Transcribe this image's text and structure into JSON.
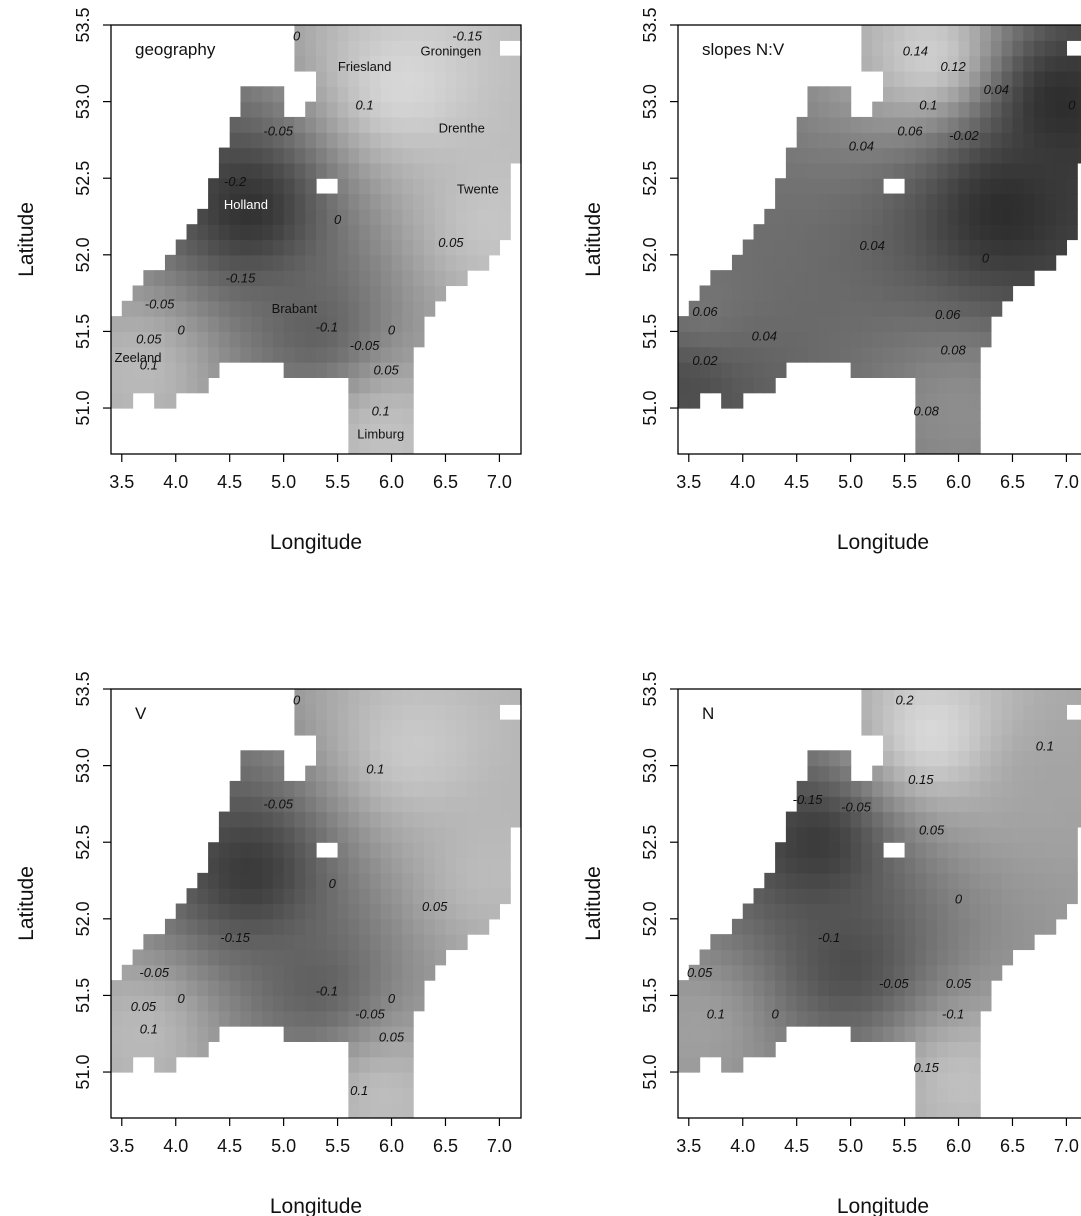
{
  "figure": {
    "background": "#ffffff",
    "foreground": "#000000"
  },
  "chart_data": [
    {
      "type": "heatmap",
      "title": "",
      "panel_label": "geography",
      "xlabel": "Longitude",
      "ylabel": "Latitude",
      "xlim": [
        3.4,
        7.2
      ],
      "ylim": [
        50.7,
        53.5
      ],
      "xticks": [
        "3.5",
        "4.0",
        "4.5",
        "5.0",
        "5.5",
        "6.0",
        "6.5",
        "7.0"
      ],
      "yticks": [
        "51.0",
        "51.5",
        "52.0",
        "52.5",
        "53.0",
        "53.5"
      ],
      "colorscale": [
        "#1a1a1a",
        "#e6e6e6"
      ],
      "value_range": [
        -0.22,
        0.18
      ],
      "hotspots": [
        {
          "lon": 4.7,
          "lat": 52.3,
          "value": -0.2
        },
        {
          "lon": 6.1,
          "lat": 53.1,
          "value": 0.16
        },
        {
          "lon": 6.9,
          "lat": 52.2,
          "value": 0.12
        },
        {
          "lon": 5.9,
          "lat": 50.85,
          "value": 0.12
        },
        {
          "lon": 3.7,
          "lat": 51.25,
          "value": 0.1
        },
        {
          "lon": 5.3,
          "lat": 51.5,
          "value": -0.1
        }
      ],
      "contour_labels": [
        {
          "text": "0",
          "lon": 5.12,
          "lat": 53.4
        },
        {
          "text": "-0.15",
          "lon": 6.7,
          "lat": 53.4
        },
        {
          "text": "0.1",
          "lon": 5.75,
          "lat": 52.95
        },
        {
          "text": "-0.05",
          "lon": 4.95,
          "lat": 52.78
        },
        {
          "text": "-0.2",
          "lon": 4.55,
          "lat": 52.45
        },
        {
          "text": "0",
          "lon": 5.5,
          "lat": 52.2
        },
        {
          "text": "0.05",
          "lon": 6.55,
          "lat": 52.05
        },
        {
          "text": "-0.15",
          "lon": 4.6,
          "lat": 51.82
        },
        {
          "text": "-0.05",
          "lon": 3.85,
          "lat": 51.65
        },
        {
          "text": "0",
          "lon": 4.05,
          "lat": 51.48
        },
        {
          "text": "0.05",
          "lon": 3.75,
          "lat": 51.42
        },
        {
          "text": "0.1",
          "lon": 3.75,
          "lat": 51.25
        },
        {
          "text": "-0.1",
          "lon": 5.4,
          "lat": 51.5
        },
        {
          "text": "-0.05",
          "lon": 5.75,
          "lat": 51.38
        },
        {
          "text": "0",
          "lon": 6.0,
          "lat": 51.48
        },
        {
          "text": "0.05",
          "lon": 5.95,
          "lat": 51.22
        },
        {
          "text": "0.1",
          "lon": 5.9,
          "lat": 50.95
        }
      ],
      "region_labels": [
        {
          "text": "Friesland",
          "lon": 5.75,
          "lat": 53.2
        },
        {
          "text": "Groningen",
          "lon": 6.55,
          "lat": 53.3
        },
        {
          "text": "Drenthe",
          "lon": 6.65,
          "lat": 52.8
        },
        {
          "text": "Holland",
          "lon": 4.65,
          "lat": 52.3
        },
        {
          "text": "Twente",
          "lon": 6.8,
          "lat": 52.4
        },
        {
          "text": "Brabant",
          "lon": 5.1,
          "lat": 51.62
        },
        {
          "text": "Zeeland",
          "lon": 3.65,
          "lat": 51.3
        },
        {
          "text": "Limburg",
          "lon": 5.9,
          "lat": 50.8
        }
      ]
    },
    {
      "type": "heatmap",
      "title": "",
      "panel_label": "slopes N:V",
      "xlabel": "Longitude",
      "ylabel": "Latitude",
      "xlim": [
        3.4,
        7.2
      ],
      "ylim": [
        50.7,
        53.5
      ],
      "xticks": [
        "3.5",
        "4.0",
        "4.5",
        "5.0",
        "5.5",
        "6.0",
        "6.5",
        "7.0"
      ],
      "yticks": [
        "51.0",
        "51.5",
        "52.0",
        "52.5",
        "53.0",
        "53.5"
      ],
      "colorscale": [
        "#1a1a1a",
        "#e6e6e6"
      ],
      "value_range": [
        -0.03,
        0.16
      ],
      "hotspots": [
        {
          "lon": 5.75,
          "lat": 53.3,
          "value": 0.15
        },
        {
          "lon": 6.4,
          "lat": 52.3,
          "value": -0.02
        },
        {
          "lon": 6.9,
          "lat": 53.0,
          "value": -0.02
        },
        {
          "lon": 3.5,
          "lat": 51.2,
          "value": 0.01
        },
        {
          "lon": 6.0,
          "lat": 51.0,
          "value": 0.08
        },
        {
          "lon": 3.6,
          "lat": 51.6,
          "value": 0.06
        }
      ],
      "contour_labels": [
        {
          "text": "0.14",
          "lon": 5.6,
          "lat": 53.3
        },
        {
          "text": "0.12",
          "lon": 5.95,
          "lat": 53.2
        },
        {
          "text": "0.04",
          "lon": 6.35,
          "lat": 53.05
        },
        {
          "text": "0.1",
          "lon": 5.72,
          "lat": 52.95
        },
        {
          "text": "0.06",
          "lon": 5.55,
          "lat": 52.78
        },
        {
          "text": "-0.02",
          "lon": 6.05,
          "lat": 52.75
        },
        {
          "text": "0.04",
          "lon": 5.1,
          "lat": 52.68
        },
        {
          "text": "0",
          "lon": 7.05,
          "lat": 52.95
        },
        {
          "text": "0.04",
          "lon": 5.2,
          "lat": 52.03
        },
        {
          "text": "0",
          "lon": 6.25,
          "lat": 51.95
        },
        {
          "text": "0.06",
          "lon": 3.65,
          "lat": 51.6
        },
        {
          "text": "0.06",
          "lon": 5.9,
          "lat": 51.58
        },
        {
          "text": "0.04",
          "lon": 4.2,
          "lat": 51.44
        },
        {
          "text": "0.08",
          "lon": 5.95,
          "lat": 51.35
        },
        {
          "text": "0.02",
          "lon": 3.65,
          "lat": 51.28
        },
        {
          "text": "0.08",
          "lon": 5.7,
          "lat": 50.95
        }
      ]
    },
    {
      "type": "heatmap",
      "title": "",
      "panel_label": "V",
      "xlabel": "Longitude",
      "ylabel": "Latitude",
      "xlim": [
        3.4,
        7.2
      ],
      "ylim": [
        50.7,
        53.5
      ],
      "xticks": [
        "3.5",
        "4.0",
        "4.5",
        "5.0",
        "5.5",
        "6.0",
        "6.5",
        "7.0"
      ],
      "yticks": [
        "51.0",
        "51.5",
        "52.0",
        "52.5",
        "53.0",
        "53.5"
      ],
      "colorscale": [
        "#1a1a1a",
        "#e6e6e6"
      ],
      "value_range": [
        -0.22,
        0.18
      ],
      "hotspots": [
        {
          "lon": 4.7,
          "lat": 52.3,
          "value": -0.18
        },
        {
          "lon": 6.2,
          "lat": 53.1,
          "value": 0.13
        },
        {
          "lon": 6.9,
          "lat": 52.3,
          "value": 0.1
        },
        {
          "lon": 5.9,
          "lat": 50.85,
          "value": 0.11
        },
        {
          "lon": 3.7,
          "lat": 51.25,
          "value": 0.1
        },
        {
          "lon": 5.3,
          "lat": 51.55,
          "value": -0.1
        }
      ],
      "contour_labels": [
        {
          "text": "0",
          "lon": 5.12,
          "lat": 53.4
        },
        {
          "text": "0.1",
          "lon": 5.85,
          "lat": 52.95
        },
        {
          "text": "-0.05",
          "lon": 4.95,
          "lat": 52.72
        },
        {
          "text": "0",
          "lon": 5.45,
          "lat": 52.2
        },
        {
          "text": "0.05",
          "lon": 6.4,
          "lat": 52.05
        },
        {
          "text": "-0.15",
          "lon": 4.55,
          "lat": 51.85
        },
        {
          "text": "-0.05",
          "lon": 3.8,
          "lat": 51.62
        },
        {
          "text": "0",
          "lon": 4.05,
          "lat": 51.45
        },
        {
          "text": "0.05",
          "lon": 3.7,
          "lat": 51.4
        },
        {
          "text": "0.1",
          "lon": 3.75,
          "lat": 51.25
        },
        {
          "text": "-0.1",
          "lon": 5.4,
          "lat": 51.5
        },
        {
          "text": "-0.05",
          "lon": 5.8,
          "lat": 51.35
        },
        {
          "text": "0",
          "lon": 6.0,
          "lat": 51.45
        },
        {
          "text": "0.05",
          "lon": 6.0,
          "lat": 51.2
        },
        {
          "text": "0.1",
          "lon": 5.7,
          "lat": 50.85
        }
      ]
    },
    {
      "type": "heatmap",
      "title": "",
      "panel_label": "N",
      "xlabel": "Longitude",
      "ylabel": "Latitude",
      "xlim": [
        3.4,
        7.2
      ],
      "ylim": [
        50.7,
        53.5
      ],
      "xticks": [
        "3.5",
        "4.0",
        "4.5",
        "5.0",
        "5.5",
        "6.0",
        "6.5",
        "7.0"
      ],
      "yticks": [
        "51.0",
        "51.5",
        "52.0",
        "52.5",
        "53.0",
        "53.5"
      ],
      "colorscale": [
        "#1a1a1a",
        "#e6e6e6"
      ],
      "value_range": [
        -0.22,
        0.26
      ],
      "hotspots": [
        {
          "lon": 5.75,
          "lat": 53.2,
          "value": 0.25
        },
        {
          "lon": 4.7,
          "lat": 52.5,
          "value": -0.17
        },
        {
          "lon": 6.8,
          "lat": 52.9,
          "value": 0.1
        },
        {
          "lon": 6.0,
          "lat": 50.95,
          "value": 0.18
        },
        {
          "lon": 3.6,
          "lat": 51.3,
          "value": 0.1
        },
        {
          "lon": 5.0,
          "lat": 51.7,
          "value": -0.12
        }
      ],
      "contour_labels": [
        {
          "text": "0.2",
          "lon": 5.5,
          "lat": 53.4
        },
        {
          "text": "0.1",
          "lon": 6.8,
          "lat": 53.1
        },
        {
          "text": "0.15",
          "lon": 5.65,
          "lat": 52.88
        },
        {
          "text": "-0.15",
          "lon": 4.6,
          "lat": 52.75
        },
        {
          "text": "-0.05",
          "lon": 5.05,
          "lat": 52.7
        },
        {
          "text": "0.05",
          "lon": 5.75,
          "lat": 52.55
        },
        {
          "text": "0",
          "lon": 6.0,
          "lat": 52.1
        },
        {
          "text": "-0.1",
          "lon": 4.8,
          "lat": 51.85
        },
        {
          "text": "0.05",
          "lon": 3.6,
          "lat": 51.62
        },
        {
          "text": "-0.05",
          "lon": 5.4,
          "lat": 51.55
        },
        {
          "text": "0.05",
          "lon": 6.0,
          "lat": 51.55
        },
        {
          "text": "0.1",
          "lon": 3.75,
          "lat": 51.35
        },
        {
          "text": "0",
          "lon": 4.3,
          "lat": 51.35
        },
        {
          "text": "-0.1",
          "lon": 5.95,
          "lat": 51.35
        },
        {
          "text": "0.15",
          "lon": 5.7,
          "lat": 51.0
        }
      ]
    }
  ]
}
